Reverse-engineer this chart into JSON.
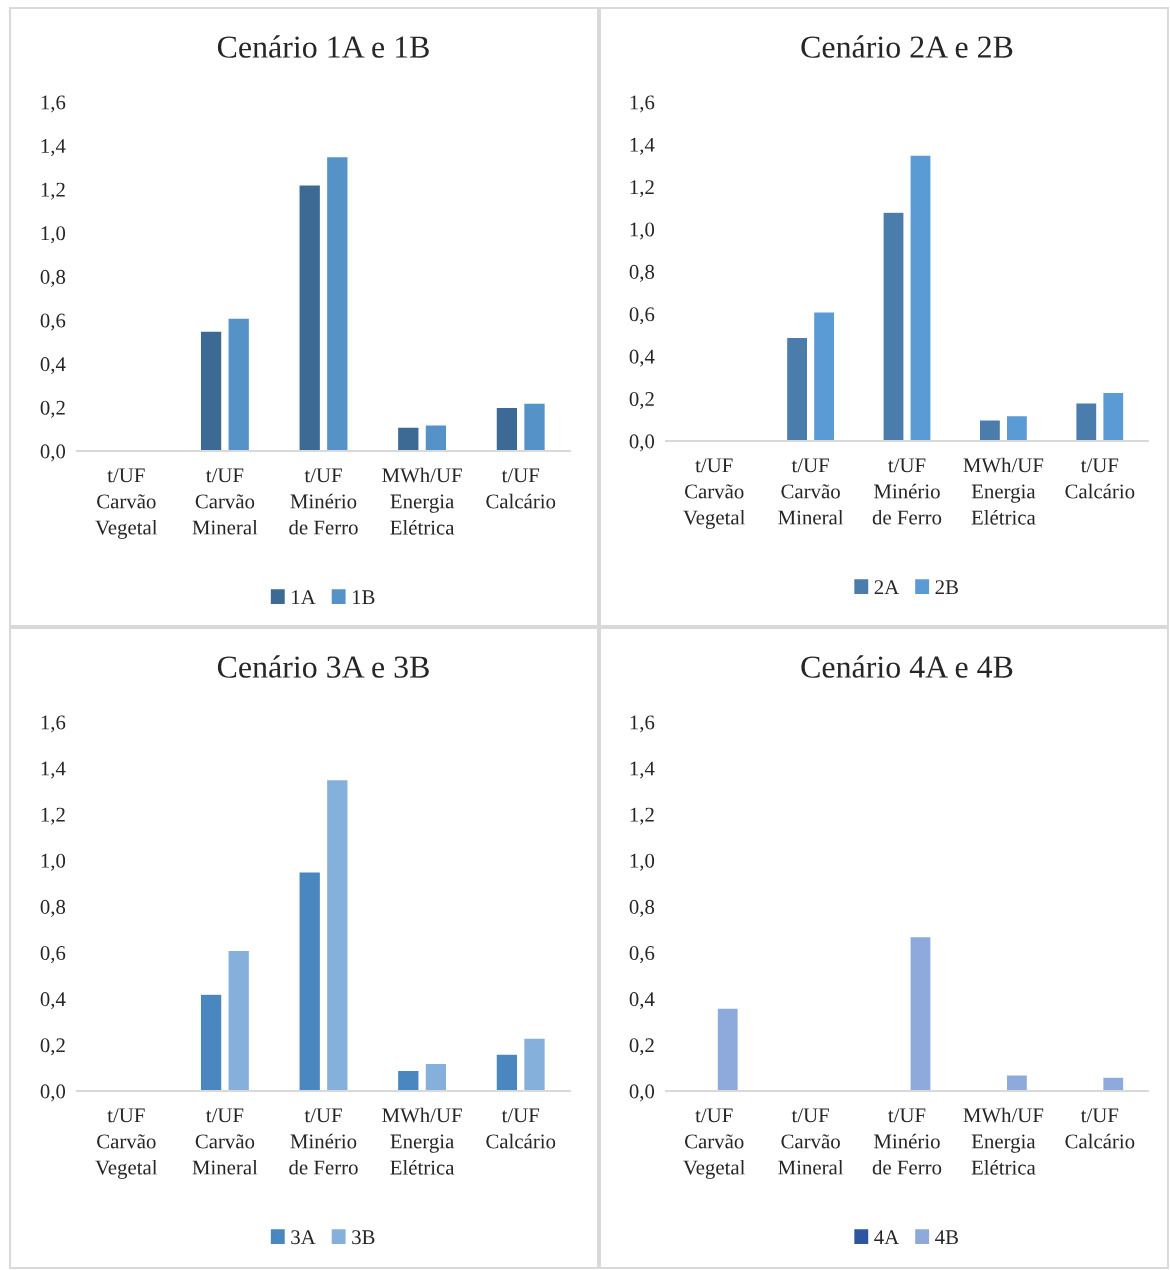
{
  "chart_data": [
    {
      "type": "bar",
      "title": "Cenário 1A e 1B",
      "categories": [
        "t/UF\nCarvão\nVegetal",
        "t/UF\nCarvão\nMineral",
        "t/UF\nMinério\nde Ferro",
        "MWh/UF\nEnergia\nElétrica",
        "t/UF\nCalcário"
      ],
      "series": [
        {
          "name": "1A",
          "color": "#3c6a94",
          "values": [
            null,
            0.55,
            1.22,
            0.11,
            0.2
          ]
        },
        {
          "name": "1B",
          "color": "#5592c8",
          "values": [
            null,
            0.61,
            1.35,
            0.12,
            0.22
          ]
        }
      ],
      "ylim": [
        0,
        1.6
      ],
      "yticks": [
        {
          "value": 0,
          "label": "0,0"
        },
        {
          "value": 0.2,
          "label": "0,2"
        },
        {
          "value": 0.4,
          "label": "0,4"
        },
        {
          "value": 0.6,
          "label": "0,6"
        },
        {
          "value": 0.8,
          "label": "0,8"
        },
        {
          "value": 1.0,
          "label": "1,0"
        },
        {
          "value": 1.2,
          "label": "1,2"
        },
        {
          "value": 1.4,
          "label": "1,4"
        },
        {
          "value": 1.6,
          "label": "1,6"
        }
      ],
      "grid": false,
      "legend": "bottom"
    },
    {
      "type": "bar",
      "title": "Cenário 2A e 2B",
      "categories": [
        "t/UF\nCarvão\nVegetal",
        "t/UF\nCarvão\nMineral",
        "t/UF\nMinério\nde Ferro",
        "MWh/UF\nEnergia\nElétrica",
        "t/UF\nCalcário"
      ],
      "series": [
        {
          "name": "2A",
          "color": "#4a7cac",
          "values": [
            null,
            0.49,
            1.08,
            0.1,
            0.18
          ]
        },
        {
          "name": "2B",
          "color": "#5b9bd5",
          "values": [
            null,
            0.61,
            1.35,
            0.12,
            0.23
          ]
        }
      ],
      "ylim": [
        0,
        1.6
      ],
      "yticks": [
        {
          "value": 0,
          "label": "0,0"
        },
        {
          "value": 0.2,
          "label": "0,2"
        },
        {
          "value": 0.4,
          "label": "0,4"
        },
        {
          "value": 0.6,
          "label": "0,6"
        },
        {
          "value": 0.8,
          "label": "0,8"
        },
        {
          "value": 1.0,
          "label": "1,0"
        },
        {
          "value": 1.2,
          "label": "1,2"
        },
        {
          "value": 1.4,
          "label": "1,4"
        },
        {
          "value": 1.6,
          "label": "1,6"
        }
      ],
      "grid": false,
      "legend": "bottom"
    },
    {
      "type": "bar",
      "title": "Cenário 3A e 3B",
      "categories": [
        "t/UF\nCarvão\nVegetal",
        "t/UF\nCarvão\nMineral",
        "t/UF\nMinério\nde Ferro",
        "MWh/UF\nEnergia\nElétrica",
        "t/UF\nCalcário"
      ],
      "series": [
        {
          "name": "3A",
          "color": "#4a86c0",
          "values": [
            null,
            0.42,
            0.95,
            0.09,
            0.16
          ]
        },
        {
          "name": "3B",
          "color": "#86b0dc",
          "values": [
            null,
            0.61,
            1.35,
            0.12,
            0.23
          ]
        }
      ],
      "ylim": [
        0,
        1.6
      ],
      "yticks": [
        {
          "value": 0,
          "label": "0,0"
        },
        {
          "value": 0.2,
          "label": "0,2"
        },
        {
          "value": 0.4,
          "label": "0,4"
        },
        {
          "value": 0.6,
          "label": "0,6"
        },
        {
          "value": 0.8,
          "label": "0,8"
        },
        {
          "value": 1.0,
          "label": "1,0"
        },
        {
          "value": 1.2,
          "label": "1,2"
        },
        {
          "value": 1.4,
          "label": "1,4"
        },
        {
          "value": 1.6,
          "label": "1,6"
        }
      ],
      "grid": false,
      "legend": "bottom"
    },
    {
      "type": "bar",
      "title": "Cenário 4A e 4B",
      "categories": [
        "t/UF\nCarvão\nVegetal",
        "t/UF\nCarvão\nMineral",
        "t/UF\nMinério\nde Ferro",
        "MWh/UF\nEnergia\nElétrica",
        "t/UF\nCalcário"
      ],
      "series": [
        {
          "name": "4A",
          "color": "#2e55a0",
          "values": [
            null,
            null,
            null,
            null,
            null
          ]
        },
        {
          "name": "4B",
          "color": "#8eaadc",
          "values": [
            0.36,
            null,
            0.67,
            0.07,
            0.06
          ]
        }
      ],
      "ylim": [
        0,
        1.6
      ],
      "yticks": [
        {
          "value": 0,
          "label": "0,0"
        },
        {
          "value": 0.2,
          "label": "0,2"
        },
        {
          "value": 0.4,
          "label": "0,4"
        },
        {
          "value": 0.6,
          "label": "0,6"
        },
        {
          "value": 0.8,
          "label": "0,8"
        },
        {
          "value": 1.0,
          "label": "1,0"
        },
        {
          "value": 1.2,
          "label": "1,2"
        },
        {
          "value": 1.4,
          "label": "1,4"
        },
        {
          "value": 1.6,
          "label": "1,6"
        }
      ],
      "grid": false,
      "legend": "bottom"
    }
  ]
}
